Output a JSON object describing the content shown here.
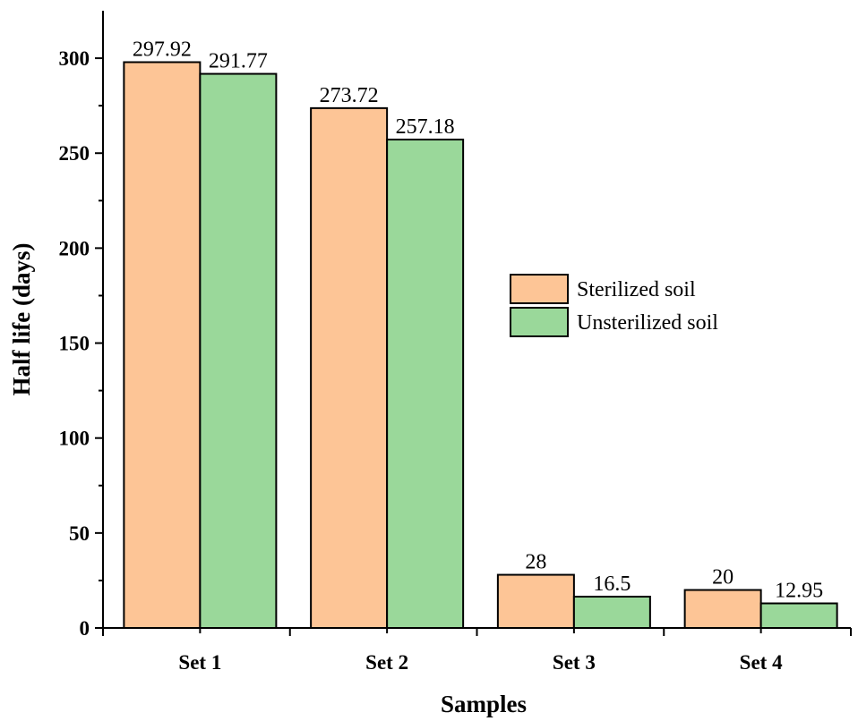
{
  "chart_data": {
    "type": "bar",
    "xlabel": "Samples",
    "ylabel": "Half life (days)",
    "categories": [
      "Set 1",
      "Set 2",
      "Set 3",
      "Set 4"
    ],
    "series": [
      {
        "name": "Sterilized soil",
        "color": "#FDC596",
        "values": [
          297.92,
          273.72,
          28,
          20
        ],
        "labels": [
          "297.92",
          "273.72",
          "28",
          "20"
        ]
      },
      {
        "name": "Unsterilized soil",
        "color": "#9AD89A",
        "values": [
          291.77,
          257.18,
          16.5,
          12.95
        ],
        "labels": [
          "291.77",
          "257.18",
          "16.5",
          "12.95"
        ]
      }
    ],
    "ylim": [
      0,
      325
    ],
    "yticks": [
      0,
      50,
      100,
      150,
      200,
      250,
      300
    ],
    "ytick_labels": [
      "0",
      "50",
      "100",
      "150",
      "200",
      "250",
      "300"
    ],
    "legend_position": "right-center",
    "grid": false
  }
}
